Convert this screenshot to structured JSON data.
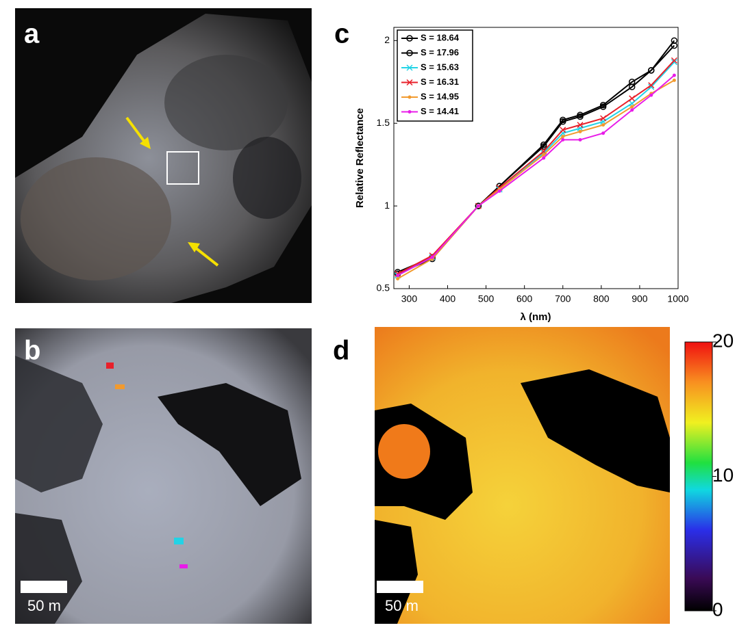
{
  "panel_labels": [
    "a",
    "b",
    "c",
    "d"
  ],
  "scale_bars": [
    "50 m",
    "50 m"
  ],
  "colorbar": {
    "range": [
      0,
      20
    ],
    "ticks": [
      0,
      10,
      20
    ]
  },
  "chart_data": {
    "type": "line",
    "xlabel": "λ (nm)",
    "ylabel": "Relative Reflectance",
    "x": [
      270,
      360,
      480,
      535,
      650,
      700,
      745,
      805,
      880,
      930,
      990
    ],
    "xlim": [
      260,
      1000
    ],
    "xticks": [
      300,
      400,
      500,
      600,
      700,
      800,
      900,
      1000
    ],
    "ylim": [
      0.5,
      2.08
    ],
    "yticks": [
      0.5,
      1,
      1.5,
      2
    ],
    "legend": "upper-left",
    "series": [
      {
        "name": "S = 18.64",
        "color": "#000000",
        "marker": "o",
        "values": [
          0.6,
          0.69,
          1.0,
          1.12,
          1.37,
          1.52,
          1.55,
          1.61,
          1.75,
          1.82,
          2.0
        ]
      },
      {
        "name": "S = 17.96",
        "color": "#000000",
        "marker": "o",
        "values": [
          0.59,
          0.68,
          1.0,
          1.12,
          1.36,
          1.51,
          1.54,
          1.6,
          1.72,
          1.82,
          1.97
        ]
      },
      {
        "name": "S = 15.63",
        "color": "#22d3e6",
        "marker": "x",
        "values": [
          0.58,
          0.69,
          1.0,
          1.1,
          1.32,
          1.44,
          1.47,
          1.51,
          1.62,
          1.72,
          1.87
        ]
      },
      {
        "name": "S = 16.31",
        "color": "#e8202a",
        "marker": "x",
        "values": [
          0.59,
          0.7,
          1.0,
          1.11,
          1.33,
          1.46,
          1.49,
          1.53,
          1.65,
          1.73,
          1.88
        ]
      },
      {
        "name": "S = 14.95",
        "color": "#f29a2e",
        "marker": ".",
        "values": [
          0.56,
          0.68,
          1.0,
          1.1,
          1.31,
          1.42,
          1.45,
          1.49,
          1.6,
          1.68,
          1.76
        ]
      },
      {
        "name": "S = 14.41",
        "color": "#e81ce8",
        "marker": ".",
        "values": [
          0.58,
          0.69,
          1.0,
          1.09,
          1.29,
          1.4,
          1.4,
          1.44,
          1.58,
          1.67,
          1.79
        ]
      }
    ]
  }
}
